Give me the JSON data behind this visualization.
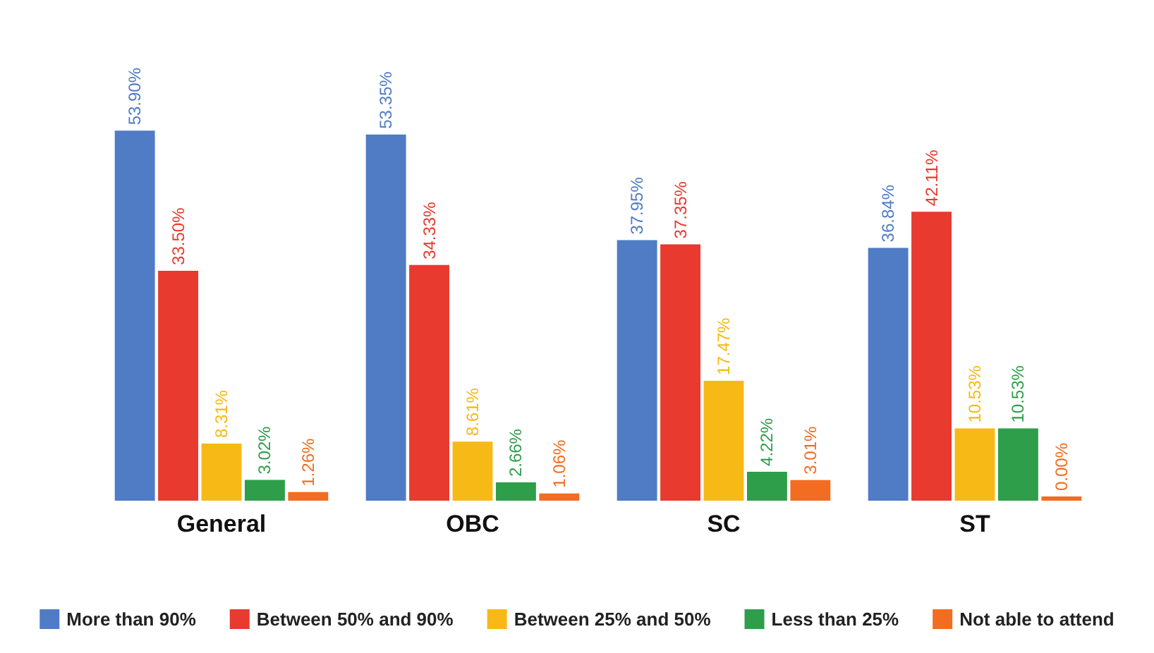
{
  "chart_data": {
    "type": "bar",
    "categories": [
      "General",
      "OBC",
      "SC",
      "ST"
    ],
    "legend": "bottom",
    "series": [
      {
        "name": "More than 90%",
        "color": "#4f7cc4",
        "values": [
          53.9,
          53.35,
          37.95,
          36.84
        ],
        "value_labels": [
          "53.90%",
          "53.35%",
          "37.95%",
          "36.84%"
        ]
      },
      {
        "name": "Between 50% and 90%",
        "color": "#e83a2f",
        "values": [
          33.5,
          34.33,
          37.35,
          42.11
        ],
        "value_labels": [
          "33.50%",
          "34.33%",
          "37.35%",
          "42.11%"
        ]
      },
      {
        "name": "Between 25% and 50%",
        "color": "#f7b916",
        "values": [
          8.31,
          8.61,
          17.47,
          10.53
        ],
        "value_labels": [
          "8.31%",
          "8.61%",
          "17.47%",
          "10.53%"
        ]
      },
      {
        "name": "Less than 25%",
        "color": "#2e9e4a",
        "values": [
          3.02,
          2.66,
          4.22,
          10.53
        ],
        "value_labels": [
          "3.02%",
          "2.66%",
          "4.22%",
          "10.53%"
        ]
      },
      {
        "name": "Not able to attend",
        "color": "#f26d21",
        "values": [
          1.26,
          1.06,
          3.01,
          0
        ],
        "value_labels": [
          "1.26%",
          "1.06%",
          "3.01%",
          "0.00%"
        ]
      }
    ]
  }
}
